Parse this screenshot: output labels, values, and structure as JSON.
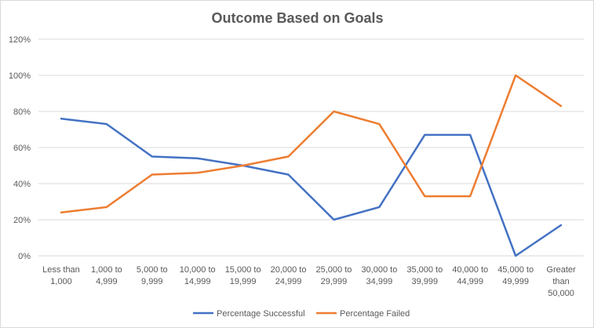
{
  "chart_data": {
    "type": "line",
    "title": "Outcome Based on Goals",
    "xlabel": "",
    "ylabel": "",
    "ylim": [
      0,
      120
    ],
    "yticks": [
      "0%",
      "20%",
      "40%",
      "60%",
      "80%",
      "100%",
      "120%"
    ],
    "categories": [
      "Less than 1,000",
      "1,000 to 4,999",
      "5,000 to 9,999",
      "10,000 to 14,999",
      "15,000 to 19,999",
      "20,000 to 24,999",
      "25,000 to 29,999",
      "30,000 to 34,999",
      "35,000 to 39,999",
      "40,000 to 44,999",
      "45,000 to 49,999",
      "Greater than 50,000"
    ],
    "series": [
      {
        "name": "Percentage Successful",
        "color": "#4472c4",
        "values": [
          76,
          73,
          55,
          54,
          50,
          45,
          20,
          27,
          67,
          67,
          0,
          17
        ]
      },
      {
        "name": "Percentage Failed",
        "color": "#ed7d31",
        "values": [
          24,
          27,
          45,
          46,
          50,
          55,
          80,
          73,
          33,
          33,
          100,
          83
        ]
      }
    ],
    "grid": true,
    "legend": "bottom"
  }
}
